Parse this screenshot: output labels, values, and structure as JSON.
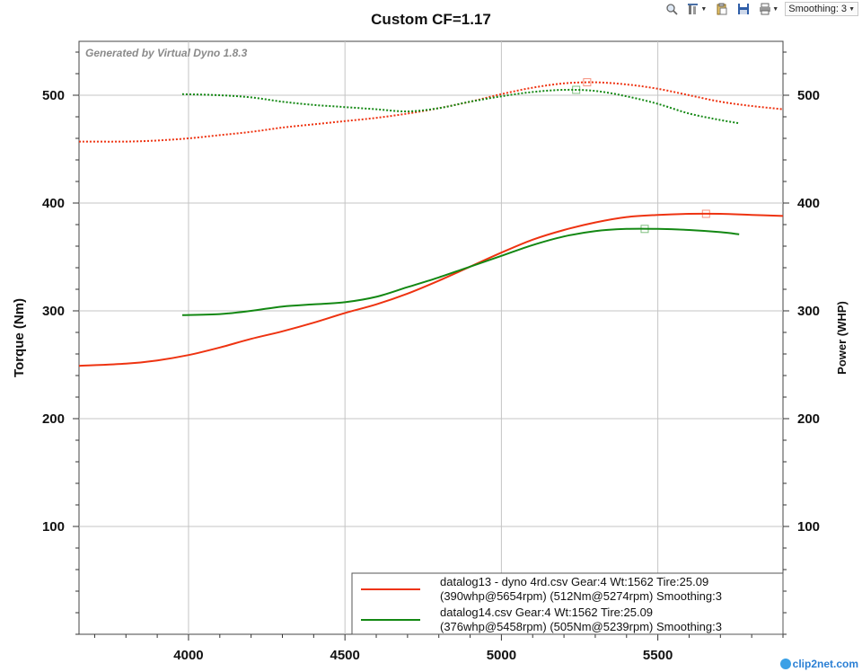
{
  "toolbar": {
    "smoothing_label": "Smoothing: 3",
    "icons": [
      "zoom-icon",
      "settings-icon",
      "clipboard-icon",
      "save-icon",
      "print-icon"
    ]
  },
  "watermark": "clip2net.com",
  "chart_data": {
    "type": "line",
    "title": "Custom CF=1.17",
    "subtitle": "Generated by Virtual Dyno 1.8.3",
    "xlabel": "",
    "ylabel_left": "Torque (Nm)",
    "ylabel_right": "Power (WHP)",
    "xlim": [
      3650,
      5900
    ],
    "ylim_left": [
      0,
      550
    ],
    "ylim_right": [
      0,
      550
    ],
    "xticks": [
      4000,
      4500,
      5000,
      5500
    ],
    "yticks_left": [
      100,
      200,
      300,
      400,
      500
    ],
    "yticks_right": [
      100,
      200,
      300,
      400,
      500
    ],
    "grid": true,
    "legend_position": "bottom-right",
    "legend": [
      {
        "line1": "datalog13 - dyno 4rd.csv Gear:4 Wt:1562 Tire:25.09",
        "line2": "(390whp@5654rpm) (512Nm@5274rpm) Smoothing:3",
        "color": "#ee3311"
      },
      {
        "line1": "datalog14.csv Gear:4 Wt:1562 Tire:25.09",
        "line2": "(376whp@5458rpm) (505Nm@5239rpm) Smoothing:3",
        "color": "#138813"
      }
    ],
    "series": [
      {
        "name": "datalog13 - dyno 4rd.csv",
        "color": "#ee3311",
        "power": {
          "axis": "right",
          "style": "solid",
          "x": [
            3650,
            3800,
            3900,
            4000,
            4100,
            4200,
            4300,
            4400,
            4500,
            4600,
            4700,
            4800,
            4900,
            5000,
            5100,
            5200,
            5300,
            5400,
            5500,
            5600,
            5700,
            5800,
            5900
          ],
          "y": [
            249,
            251,
            254,
            259,
            266,
            274,
            281,
            289,
            298,
            306,
            316,
            328,
            341,
            354,
            366,
            375,
            382,
            387,
            389,
            390,
            390,
            389,
            388
          ]
        },
        "torque": {
          "axis": "left",
          "style": "dotted",
          "x": [
            3650,
            3800,
            3900,
            4000,
            4100,
            4200,
            4300,
            4400,
            4500,
            4600,
            4700,
            4800,
            4900,
            5000,
            5100,
            5200,
            5300,
            5400,
            5500,
            5600,
            5700,
            5800,
            5900
          ],
          "y": [
            457,
            457,
            458,
            460,
            463,
            466,
            470,
            473,
            476,
            479,
            483,
            488,
            494,
            501,
            507,
            511,
            512,
            510,
            506,
            500,
            494,
            490,
            487
          ]
        },
        "peak_markers": [
          {
            "x": 5654,
            "y": 390,
            "axis": "right"
          },
          {
            "x": 5274,
            "y": 512,
            "axis": "left"
          }
        ]
      },
      {
        "name": "datalog14.csv",
        "color": "#138813",
        "power": {
          "axis": "right",
          "style": "solid",
          "x": [
            3980,
            4100,
            4200,
            4300,
            4400,
            4500,
            4600,
            4700,
            4800,
            4900,
            5000,
            5100,
            5200,
            5300,
            5400,
            5500,
            5600,
            5700,
            5760
          ],
          "y": [
            296,
            297,
            300,
            304,
            306,
            308,
            313,
            322,
            331,
            341,
            351,
            361,
            369,
            374,
            376,
            376,
            375,
            373,
            371
          ]
        },
        "torque": {
          "axis": "left",
          "style": "dotted",
          "x": [
            3980,
            4100,
            4200,
            4300,
            4400,
            4500,
            4600,
            4700,
            4800,
            4900,
            5000,
            5100,
            5200,
            5300,
            5400,
            5500,
            5600,
            5700,
            5760
          ],
          "y": [
            501,
            500,
            498,
            494,
            491,
            489,
            487,
            485,
            488,
            494,
            499,
            503,
            505,
            504,
            499,
            492,
            483,
            477,
            474
          ]
        },
        "peak_markers": [
          {
            "x": 5458,
            "y": 376,
            "axis": "right"
          },
          {
            "x": 5239,
            "y": 505,
            "axis": "left"
          }
        ]
      }
    ]
  }
}
